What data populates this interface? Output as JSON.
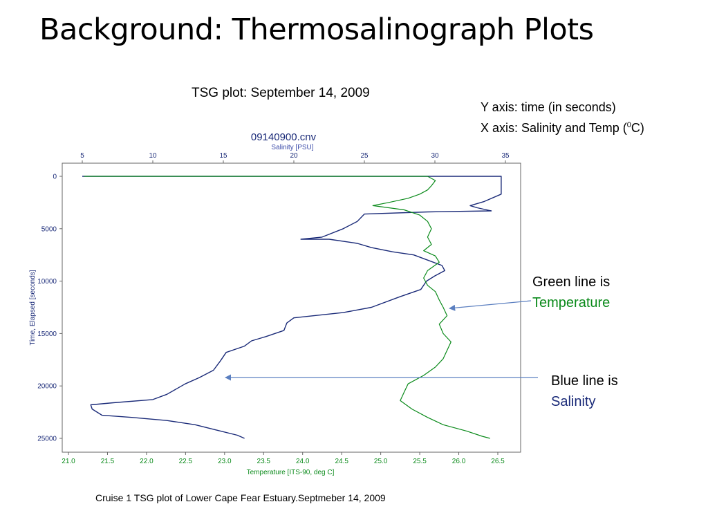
{
  "slide": {
    "title": "Background: Thermosalinograph Plots",
    "subtitle": "TSG plot: September 14, 2009",
    "y_note": "Y axis: time (in seconds)",
    "x_note_prefix": "X axis: Salinity and Temp (",
    "x_note_sup": "0",
    "x_note_suffix": "C)",
    "green_line_text": "Green line is",
    "green_line_word": "Temperature",
    "blue_line_text": "Blue line is",
    "blue_line_word": "Salinity",
    "caption": "Cruise 1 TSG plot of Lower Cape Fear Estuary.Septmeber 14, 2009"
  },
  "colors": {
    "temperature": "#0a8a1a",
    "salinity": "#1a2a78",
    "arrow": "#5b7fc0",
    "axis": "#666666"
  },
  "chart_data": {
    "type": "line",
    "title": "09140900.cnv",
    "top_axis": {
      "label": "Salinity [PSU]",
      "range": [
        5,
        35
      ],
      "ticks": [
        "5",
        "10",
        "15",
        "20",
        "25",
        "30",
        "35"
      ]
    },
    "bottom_axis": {
      "label": "Temperature [ITS-90, deg C]",
      "range": [
        21.0,
        26.5
      ],
      "ticks": [
        "21.0",
        "21.5",
        "22.0",
        "22.5",
        "23.0",
        "23.5",
        "24.0",
        "24.5",
        "25.0",
        "25.5",
        "26.0",
        "26.5"
      ]
    },
    "y_axis": {
      "label": "Time, Elapsed [seconds]",
      "range": [
        0,
        25000
      ],
      "inverted": true,
      "ticks": [
        "0",
        "5000",
        "10000",
        "15000",
        "20000",
        "25000"
      ]
    },
    "series": [
      {
        "name": "Salinity",
        "axis": "top",
        "points": [
          [
            5,
            0
          ],
          [
            15,
            0
          ],
          [
            34.7,
            0
          ],
          [
            34.7,
            1700
          ],
          [
            33.5,
            2400
          ],
          [
            32.5,
            2800
          ],
          [
            33.0,
            3000
          ],
          [
            34.0,
            3300
          ],
          [
            29.5,
            3400
          ],
          [
            25.0,
            3600
          ],
          [
            24.5,
            4300
          ],
          [
            23.5,
            5000
          ],
          [
            22.0,
            5800
          ],
          [
            20.5,
            6000
          ],
          [
            22.5,
            6000
          ],
          [
            24.5,
            6400
          ],
          [
            25.5,
            6800
          ],
          [
            27.0,
            7200
          ],
          [
            28.5,
            7500
          ],
          [
            29.5,
            8000
          ],
          [
            30.5,
            8500
          ],
          [
            30.7,
            9000
          ],
          [
            30.0,
            9500
          ],
          [
            29.4,
            10000
          ],
          [
            29.0,
            10800
          ],
          [
            27.5,
            11500
          ],
          [
            25.5,
            12500
          ],
          [
            23.5,
            13000
          ],
          [
            20.0,
            13500
          ],
          [
            19.5,
            14000
          ],
          [
            19.3,
            14700
          ],
          [
            18.0,
            15300
          ],
          [
            17.0,
            15700
          ],
          [
            16.5,
            16200
          ],
          [
            15.2,
            16800
          ],
          [
            14.8,
            17600
          ],
          [
            14.3,
            18500
          ],
          [
            13.3,
            19200
          ],
          [
            12.3,
            19800
          ],
          [
            11.0,
            20800
          ],
          [
            10.0,
            21300
          ],
          [
            7.2,
            21600
          ],
          [
            5.6,
            21800
          ],
          [
            5.7,
            22200
          ],
          [
            6.4,
            22800
          ],
          [
            8.5,
            23000
          ],
          [
            11.0,
            23300
          ],
          [
            13.0,
            23700
          ],
          [
            14.5,
            24200
          ],
          [
            16.0,
            24700
          ],
          [
            16.5,
            25000
          ]
        ]
      },
      {
        "name": "Temperature",
        "axis": "bottom",
        "points": [
          [
            21.2,
            0
          ],
          [
            25.6,
            0
          ],
          [
            25.7,
            400
          ],
          [
            25.65,
            900
          ],
          [
            25.6,
            1300
          ],
          [
            25.5,
            1700
          ],
          [
            25.35,
            2100
          ],
          [
            25.1,
            2500
          ],
          [
            24.9,
            2800
          ],
          [
            25.3,
            3200
          ],
          [
            25.5,
            3700
          ],
          [
            25.6,
            4300
          ],
          [
            25.65,
            5000
          ],
          [
            25.6,
            5800
          ],
          [
            25.65,
            6500
          ],
          [
            25.55,
            7100
          ],
          [
            25.7,
            7600
          ],
          [
            25.75,
            8200
          ],
          [
            25.6,
            9000
          ],
          [
            25.55,
            9700
          ],
          [
            25.6,
            10400
          ],
          [
            25.7,
            11000
          ],
          [
            25.75,
            11800
          ],
          [
            25.8,
            12500
          ],
          [
            25.85,
            13300
          ],
          [
            25.75,
            14100
          ],
          [
            25.8,
            15000
          ],
          [
            25.9,
            15800
          ],
          [
            25.85,
            16600
          ],
          [
            25.8,
            17400
          ],
          [
            25.7,
            18200
          ],
          [
            25.55,
            19000
          ],
          [
            25.35,
            19800
          ],
          [
            25.3,
            20600
          ],
          [
            25.25,
            21400
          ],
          [
            25.4,
            22200
          ],
          [
            25.6,
            23000
          ],
          [
            25.8,
            23700
          ],
          [
            26.1,
            24300
          ],
          [
            26.3,
            24800
          ],
          [
            26.4,
            25000
          ]
        ]
      }
    ]
  }
}
